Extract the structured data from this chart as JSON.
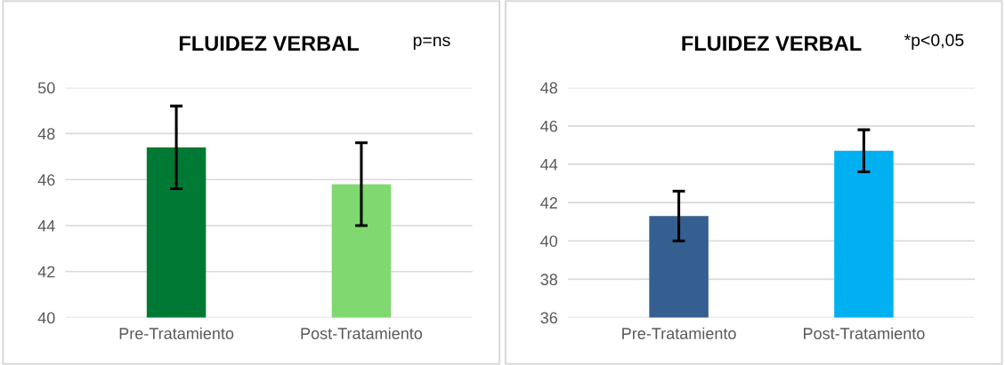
{
  "chart_data": [
    {
      "type": "bar",
      "title": "FLUIDEZ VERBAL",
      "annotations": [
        "p=ns"
      ],
      "categories": [
        "Pre-Tratamiento",
        "Post-Tratamiento"
      ],
      "values": [
        47.4,
        45.8
      ],
      "errors": [
        1.8,
        1.8
      ],
      "colors": [
        "#007934",
        "#80d970"
      ],
      "ylim": [
        40,
        50
      ],
      "yticks": [
        40,
        42,
        44,
        46,
        48,
        50
      ],
      "grid": "y",
      "legend": false
    },
    {
      "type": "bar",
      "title": "FLUIDEZ VERBAL",
      "annotations": [
        "*p<0,05"
      ],
      "categories": [
        "Pre-Tratamiento",
        "Post-Tratamiento"
      ],
      "values": [
        41.3,
        44.7
      ],
      "errors": [
        1.3,
        1.1
      ],
      "colors": [
        "#365f91",
        "#00b0f0"
      ],
      "ylim": [
        36,
        48
      ],
      "yticks": [
        36,
        38,
        40,
        42,
        44,
        46,
        48
      ],
      "grid": "y",
      "legend": false
    }
  ]
}
